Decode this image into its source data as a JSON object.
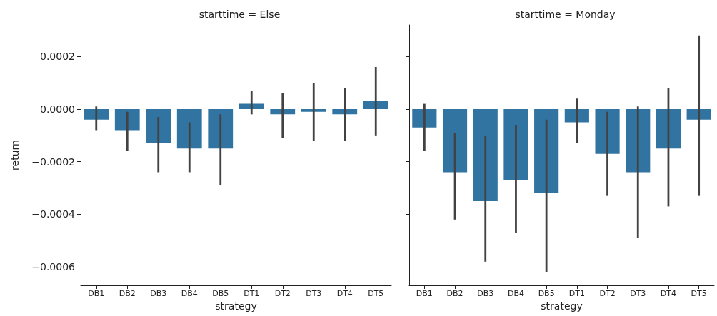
{
  "chart_data": [
    {
      "type": "bar",
      "title": "starttime = Else",
      "xlabel": "strategy",
      "ylabel": "return",
      "categories": [
        "DB1",
        "DB2",
        "DB3",
        "DB4",
        "DB5",
        "DT1",
        "DT2",
        "DT3",
        "DT4",
        "DT5"
      ],
      "series": [
        {
          "color": "#3274a1",
          "values": [
            -4e-05,
            -8e-05,
            -0.00013,
            -0.00015,
            -0.00015,
            2e-05,
            -2e-05,
            -1e-05,
            -2e-05,
            3e-05
          ],
          "errors": [
            [
              -8e-05,
              1e-05
            ],
            [
              -0.00016,
              -1e-05
            ],
            [
              -0.00024,
              -3e-05
            ],
            [
              -0.00024,
              -5e-05
            ],
            [
              -0.00029,
              -2e-05
            ],
            [
              -2e-05,
              7e-05
            ],
            [
              -0.00011,
              6e-05
            ],
            [
              -0.00012,
              0.0001
            ],
            [
              -0.00012,
              8e-05
            ],
            [
              -0.0001,
              0.00016
            ]
          ]
        }
      ],
      "ylim": [
        -0.00067,
        0.00032
      ],
      "yticks": [
        {
          "value": -0.0006,
          "label": "−0.0006"
        },
        {
          "value": -0.0004,
          "label": "−0.0004"
        },
        {
          "value": -0.0002,
          "label": "−0.0002"
        },
        {
          "value": 0,
          "label": "0.0000"
        },
        0.0002
      ]
    },
    {
      "type": "bar",
      "title": "starttime = Monday",
      "xlabel": "strategy",
      "categories": [
        "DB1",
        "DB2",
        "DB3",
        "DB4",
        "DB5",
        "DT1",
        "DT2",
        "DT3",
        "DT4",
        "DT5"
      ],
      "series": [
        {
          "color": "#3274a1",
          "values": [
            -7e-05,
            -0.00024,
            -0.00035,
            -0.00027,
            -0.00032,
            -5e-05,
            -0.00017,
            -0.00024,
            -0.00015,
            -4e-05
          ],
          "errors": [
            [
              -0.00016,
              2e-05
            ],
            [
              -0.00042,
              -9e-05
            ],
            [
              -0.00058,
              -0.0001
            ],
            [
              -0.00047,
              -6e-05
            ],
            [
              -0.00062,
              -4e-05
            ],
            [
              -0.00013,
              4e-05
            ],
            [
              -0.00033,
              -1e-05
            ],
            [
              -0.00049,
              1e-05
            ],
            [
              -0.00037,
              8e-05
            ],
            [
              -0.00033,
              0.00028
            ]
          ]
        }
      ],
      "ylim": [
        -0.00067,
        0.00032
      ],
      "yticks": [
        -0.0006,
        -0.0004,
        -0.0002,
        0,
        0.0002
      ],
      "tick_labels": "x"
    }
  ]
}
